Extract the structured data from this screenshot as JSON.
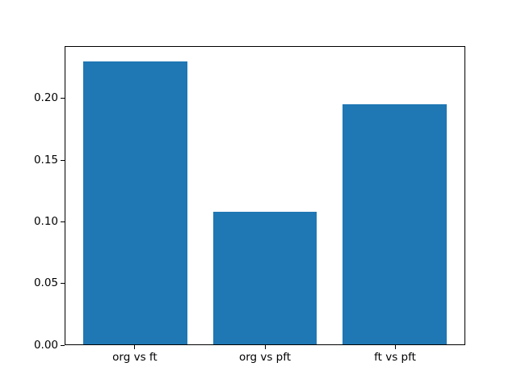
{
  "chart_data": {
    "type": "bar",
    "categories": [
      "org vs ft",
      "org vs pft",
      "ft vs pft"
    ],
    "values": [
      0.231,
      0.108,
      0.196
    ],
    "title": "",
    "xlabel": "",
    "ylabel": "",
    "ylim": [
      0,
      0.2426
    ],
    "xlim": [
      -0.54,
      2.54
    ],
    "bar_width": 0.8,
    "yticks": [
      0.0,
      0.05,
      0.1,
      0.15,
      0.2
    ],
    "ytick_labels": [
      "0.00",
      "0.05",
      "0.10",
      "0.15",
      "0.20"
    ],
    "grid": false,
    "legend": null,
    "colors": {
      "bar": "#1f77b4",
      "axis": "#000000",
      "background": "#ffffff"
    }
  }
}
